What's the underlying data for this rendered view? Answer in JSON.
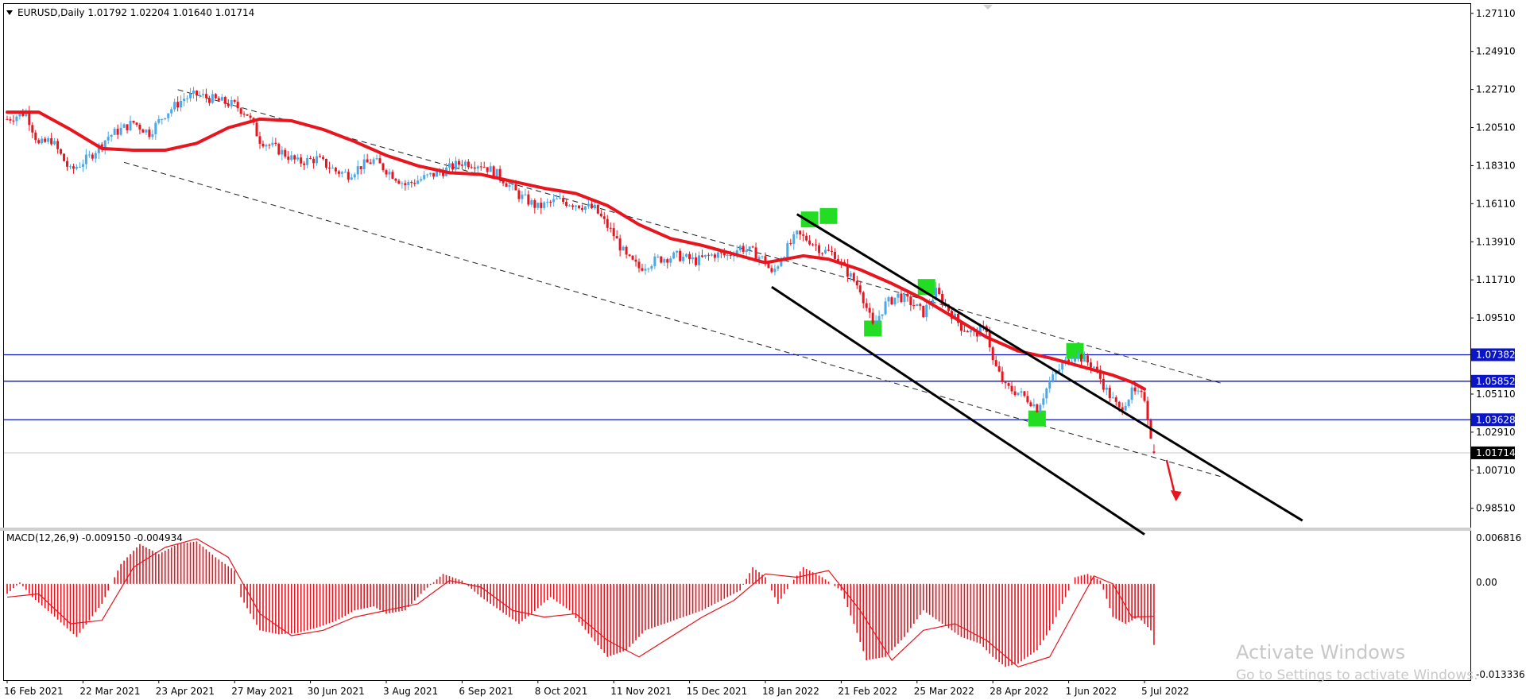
{
  "header": {
    "symbol_line": "EURUSD,Daily  1.01792 1.02204 1.01640 1.01714"
  },
  "macd": {
    "label": "MACD(12,26,9) -0.009150 -0.004934",
    "yticks": [
      "0.006816",
      "0.00",
      "-0.013336"
    ]
  },
  "watermark": {
    "line1": "Activate Windows",
    "line2": "Go to Settings to activate Windows."
  },
  "colors": {
    "bull": "#4aa8e8",
    "bear": "#e8141e",
    "ma": "#e8141e",
    "level": "#0a14c8",
    "marker": "#22dd22"
  },
  "chart_data": [
    {
      "type": "candlestick",
      "symbol": "EURUSD",
      "timeframe": "Daily",
      "ohlc_last": {
        "open": 1.01792,
        "high": 1.02204,
        "low": 1.0164,
        "close": 1.01714
      },
      "ylim": [
        0.9735,
        1.2765
      ],
      "yticks": [
        "1.27110",
        "1.24910",
        "1.22710",
        "1.20510",
        "1.18310",
        "1.16110",
        "1.13910",
        "1.11710",
        "1.09510",
        "1.07310",
        "1.05110",
        "1.02910",
        "1.00710",
        "0.98510"
      ],
      "xticks": [
        {
          "label": "16 Feb 2021",
          "t": 0
        },
        {
          "label": "22 Mar 2021",
          "t": 24
        },
        {
          "label": "23 Apr 2021",
          "t": 48
        },
        {
          "label": "27 May 2021",
          "t": 72
        },
        {
          "label": "30 Jun 2021",
          "t": 96
        },
        {
          "label": "3 Aug 2021",
          "t": 120
        },
        {
          "label": "6 Sep 2021",
          "t": 144
        },
        {
          "label": "8 Oct 2021",
          "t": 168
        },
        {
          "label": "11 Nov 2021",
          "t": 192
        },
        {
          "label": "15 Dec 2021",
          "t": 216
        },
        {
          "label": "18 Jan 2022",
          "t": 240
        },
        {
          "label": "21 Feb 2022",
          "t": 264
        },
        {
          "label": "25 Mar 2022",
          "t": 288
        },
        {
          "label": "28 Apr 2022",
          "t": 312
        },
        {
          "label": "1 Jun 2022",
          "t": 336
        },
        {
          "label": "5 Jul 2022",
          "t": 360
        }
      ],
      "t_last": 363,
      "price_path": [
        [
          0,
          1.21
        ],
        [
          6,
          1.214
        ],
        [
          10,
          1.195
        ],
        [
          14,
          1.198
        ],
        [
          20,
          1.18
        ],
        [
          26,
          1.188
        ],
        [
          32,
          1.2
        ],
        [
          40,
          1.208
        ],
        [
          45,
          1.202
        ],
        [
          50,
          1.213
        ],
        [
          56,
          1.222
        ],
        [
          60,
          1.224
        ],
        [
          66,
          1.221
        ],
        [
          72,
          1.218
        ],
        [
          76,
          1.213
        ],
        [
          80,
          1.198
        ],
        [
          86,
          1.192
        ],
        [
          92,
          1.185
        ],
        [
          98,
          1.187
        ],
        [
          104,
          1.18
        ],
        [
          108,
          1.178
        ],
        [
          112,
          1.183
        ],
        [
          116,
          1.186
        ],
        [
          122,
          1.178
        ],
        [
          126,
          1.172
        ],
        [
          132,
          1.176
        ],
        [
          138,
          1.18
        ],
        [
          144,
          1.185
        ],
        [
          150,
          1.184
        ],
        [
          156,
          1.177
        ],
        [
          162,
          1.166
        ],
        [
          168,
          1.159
        ],
        [
          174,
          1.163
        ],
        [
          180,
          1.161
        ],
        [
          186,
          1.158
        ],
        [
          192,
          1.143
        ],
        [
          196,
          1.13
        ],
        [
          200,
          1.124
        ],
        [
          206,
          1.129
        ],
        [
          212,
          1.131
        ],
        [
          218,
          1.128
        ],
        [
          224,
          1.132
        ],
        [
          228,
          1.131
        ],
        [
          232,
          1.136
        ],
        [
          236,
          1.133
        ],
        [
          240,
          1.128
        ],
        [
          242,
          1.12
        ],
        [
          246,
          1.133
        ],
        [
          250,
          1.143
        ],
        [
          254,
          1.14
        ],
        [
          258,
          1.134
        ],
        [
          262,
          1.132
        ],
        [
          264,
          1.126
        ],
        [
          270,
          1.112
        ],
        [
          274,
          1.09
        ],
        [
          278,
          1.103
        ],
        [
          282,
          1.108
        ],
        [
          286,
          1.104
        ],
        [
          290,
          1.098
        ],
        [
          294,
          1.11
        ],
        [
          298,
          1.1
        ],
        [
          302,
          1.09
        ],
        [
          306,
          1.086
        ],
        [
          310,
          1.089
        ],
        [
          312,
          1.07
        ],
        [
          316,
          1.055
        ],
        [
          320,
          1.052
        ],
        [
          324,
          1.047
        ],
        [
          326,
          1.043
        ],
        [
          330,
          1.058
        ],
        [
          334,
          1.068
        ],
        [
          338,
          1.074
        ],
        [
          340,
          1.072
        ],
        [
          344,
          1.067
        ],
        [
          348,
          1.053
        ],
        [
          352,
          1.042
        ],
        [
          356,
          1.052
        ],
        [
          360,
          1.049
        ],
        [
          363,
          1.017
        ]
      ],
      "moving_average": [
        [
          0,
          1.214
        ],
        [
          10,
          1.214
        ],
        [
          20,
          1.204
        ],
        [
          30,
          1.193
        ],
        [
          40,
          1.192
        ],
        [
          50,
          1.192
        ],
        [
          60,
          1.196
        ],
        [
          70,
          1.205
        ],
        [
          80,
          1.21
        ],
        [
          90,
          1.209
        ],
        [
          100,
          1.204
        ],
        [
          110,
          1.197
        ],
        [
          120,
          1.189
        ],
        [
          130,
          1.183
        ],
        [
          140,
          1.179
        ],
        [
          150,
          1.178
        ],
        [
          160,
          1.174
        ],
        [
          170,
          1.17
        ],
        [
          180,
          1.167
        ],
        [
          190,
          1.16
        ],
        [
          200,
          1.149
        ],
        [
          210,
          1.141
        ],
        [
          220,
          1.137
        ],
        [
          230,
          1.132
        ],
        [
          240,
          1.127
        ],
        [
          246,
          1.129
        ],
        [
          252,
          1.131
        ],
        [
          260,
          1.129
        ],
        [
          270,
          1.123
        ],
        [
          280,
          1.115
        ],
        [
          290,
          1.106
        ],
        [
          300,
          1.095
        ],
        [
          310,
          1.084
        ],
        [
          320,
          1.076
        ],
        [
          330,
          1.072
        ],
        [
          340,
          1.067
        ],
        [
          350,
          1.062
        ],
        [
          356,
          1.058
        ],
        [
          360,
          1.054
        ]
      ],
      "horizontal_levels": [
        {
          "value": 1.07382,
          "label": "1.07382"
        },
        {
          "value": 1.05852,
          "label": "1.05852"
        },
        {
          "value": 1.03628,
          "label": "1.03628"
        }
      ],
      "current_price": {
        "value": 1.01714,
        "label": "1.01714"
      },
      "channel_dashed": [
        {
          "from": [
            54,
            1.227
          ],
          "to": [
            385,
            1.057
          ]
        },
        {
          "from": [
            37,
            1.185
          ],
          "to": [
            385,
            1.003
          ]
        }
      ],
      "channel_solid": [
        {
          "from": [
            250,
            1.155
          ],
          "to": [
            410,
            0.978
          ]
        },
        {
          "from": [
            242,
            1.113
          ],
          "to": [
            360,
            0.97
          ]
        }
      ],
      "markers": [
        {
          "t": 254,
          "price": 1.152
        },
        {
          "t": 260,
          "price": 1.154
        },
        {
          "t": 274,
          "price": 1.089
        },
        {
          "t": 291,
          "price": 1.113
        },
        {
          "t": 326,
          "price": 1.037
        },
        {
          "t": 338,
          "price": 1.076
        }
      ],
      "arrow": {
        "from": [
          367,
          1.013
        ],
        "to": [
          370,
          0.99
        ]
      }
    },
    {
      "type": "bar",
      "name": "MACD(12,26,9)",
      "ylim": [
        -0.0145,
        0.008
      ],
      "histogram_path": [
        [
          0,
          -0.0015
        ],
        [
          4,
          0.0002
        ],
        [
          8,
          -0.002
        ],
        [
          14,
          -0.0045
        ],
        [
          22,
          -0.008
        ],
        [
          30,
          -0.003
        ],
        [
          36,
          0.003
        ],
        [
          42,
          0.006
        ],
        [
          48,
          0.0045
        ],
        [
          54,
          0.006
        ],
        [
          60,
          0.0064
        ],
        [
          66,
          0.004
        ],
        [
          72,
          0.002
        ],
        [
          74,
          -0.002
        ],
        [
          80,
          -0.007
        ],
        [
          86,
          -0.0076
        ],
        [
          92,
          -0.0074
        ],
        [
          98,
          -0.0066
        ],
        [
          104,
          -0.0056
        ],
        [
          110,
          -0.004
        ],
        [
          116,
          -0.0034
        ],
        [
          120,
          -0.0045
        ],
        [
          126,
          -0.004
        ],
        [
          132,
          -0.001
        ],
        [
          138,
          0.0015
        ],
        [
          144,
          0.0005
        ],
        [
          150,
          -0.002
        ],
        [
          156,
          -0.004
        ],
        [
          162,
          -0.006
        ],
        [
          166,
          -0.0045
        ],
        [
          172,
          -0.002
        ],
        [
          178,
          -0.004
        ],
        [
          184,
          -0.0075
        ],
        [
          190,
          -0.011
        ],
        [
          196,
          -0.01
        ],
        [
          202,
          -0.007
        ],
        [
          208,
          -0.006
        ],
        [
          214,
          -0.005
        ],
        [
          220,
          -0.004
        ],
        [
          226,
          -0.0025
        ],
        [
          232,
          -0.001
        ],
        [
          236,
          0.0025
        ],
        [
          240,
          0.001
        ],
        [
          244,
          -0.003
        ],
        [
          248,
          0.0
        ],
        [
          252,
          0.0025
        ],
        [
          258,
          0.001
        ],
        [
          264,
          -0.001
        ],
        [
          268,
          -0.006
        ],
        [
          272,
          -0.0115
        ],
        [
          278,
          -0.011
        ],
        [
          284,
          -0.008
        ],
        [
          290,
          -0.004
        ],
        [
          296,
          -0.006
        ],
        [
          302,
          -0.008
        ],
        [
          308,
          -0.009
        ],
        [
          312,
          -0.011
        ],
        [
          316,
          -0.0125
        ],
        [
          320,
          -0.012
        ],
        [
          326,
          -0.01
        ],
        [
          330,
          -0.007
        ],
        [
          334,
          -0.003
        ],
        [
          338,
          0.001
        ],
        [
          342,
          0.0015
        ],
        [
          346,
          0.0005
        ],
        [
          350,
          -0.005
        ],
        [
          354,
          -0.006
        ],
        [
          358,
          -0.005
        ],
        [
          362,
          -0.007
        ],
        [
          363,
          -0.0092
        ]
      ],
      "signal_path": [
        [
          0,
          -0.002
        ],
        [
          10,
          -0.0015
        ],
        [
          20,
          -0.006
        ],
        [
          30,
          -0.0055
        ],
        [
          40,
          0.0025
        ],
        [
          50,
          0.0055
        ],
        [
          60,
          0.0068
        ],
        [
          70,
          0.004
        ],
        [
          80,
          -0.0045
        ],
        [
          90,
          -0.0078
        ],
        [
          100,
          -0.007
        ],
        [
          110,
          -0.005
        ],
        [
          120,
          -0.004
        ],
        [
          130,
          -0.003
        ],
        [
          140,
          0.0005
        ],
        [
          150,
          -0.0005
        ],
        [
          160,
          -0.004
        ],
        [
          170,
          -0.005
        ],
        [
          180,
          -0.0045
        ],
        [
          190,
          -0.0085
        ],
        [
          200,
          -0.011
        ],
        [
          210,
          -0.008
        ],
        [
          220,
          -0.005
        ],
        [
          230,
          -0.0025
        ],
        [
          240,
          0.0015
        ],
        [
          250,
          0.001
        ],
        [
          260,
          0.002
        ],
        [
          270,
          -0.004
        ],
        [
          280,
          -0.0115
        ],
        [
          290,
          -0.007
        ],
        [
          300,
          -0.006
        ],
        [
          310,
          -0.0085
        ],
        [
          320,
          -0.0125
        ],
        [
          330,
          -0.011
        ],
        [
          338,
          -0.004
        ],
        [
          344,
          0.0012
        ],
        [
          350,
          0.0
        ],
        [
          356,
          -0.005
        ],
        [
          363,
          -0.0049
        ]
      ]
    }
  ]
}
